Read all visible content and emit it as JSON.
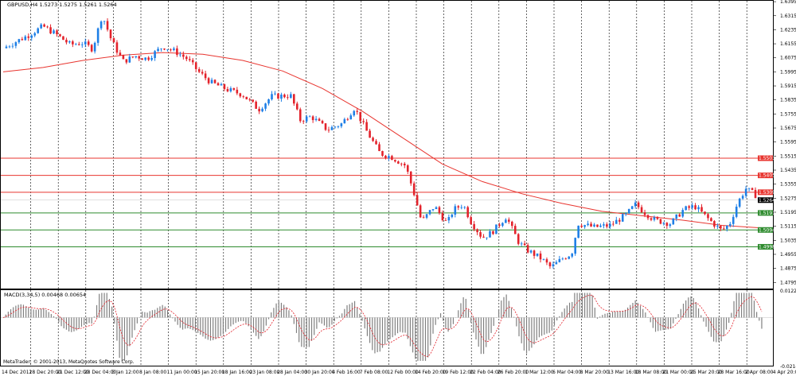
{
  "header": {
    "symbol_line": "GBPUSD,H4  1.5273 1.5275 1.5261 1.5264",
    "macd_title": "MACD(3,34,5) 0.00468 0.00654",
    "copyright": "MetaTrader, © 2001-2013, MetaQuotes Software Corp."
  },
  "chart_data": [
    {
      "type": "candlestick",
      "title": "GBPUSD,H4",
      "ohlc_last": {
        "open": 1.5273,
        "high": 1.5275,
        "low": 1.5261,
        "close": 1.5264
      },
      "ylim": [
        1.476,
        1.64
      ],
      "y_ticks": [
        "1.6395",
        "1.6315",
        "1.6235",
        "1.6155",
        "1.6075",
        "1.5995",
        "1.5915",
        "1.5835",
        "1.5755",
        "1.5675",
        "1.5595",
        "1.5515",
        "1.5435",
        "1.5355",
        "1.5275",
        "1.5195",
        "1.5115",
        "1.5035",
        "1.4955",
        "1.4875",
        "1.4795"
      ],
      "x_labels": [
        "14 Dec 2012",
        "18 Dec 20:00",
        "21 Dec 12:00",
        "28 Dec 04:00",
        "3 Jan 12:00",
        "8 Jan 08:00",
        "11 Jan 00:00",
        "15 Jan 20:00",
        "18 Jan 16:00",
        "23 Jan 08:00",
        "28 Jan 04:00",
        "30 Jan 20:00",
        "4 Feb 16:00",
        "7 Feb 08:00",
        "12 Feb 00:00",
        "14 Feb 20:00",
        "19 Feb 12:00",
        "22 Feb 04:00",
        "26 Feb 20:00",
        "1 Mar 12:00",
        "6 Mar 04:00",
        "8 Mar 20:00",
        "13 Mar 16:00",
        "18 Mar 08:00",
        "21 Mar 00:00",
        "25 Mar 20:00",
        "28 Mar 16:00",
        "2 Apr 08:00",
        "4 Apr 20:00"
      ],
      "close_path": [
        [
          0,
          1.613
        ],
        [
          1.5,
          1.62
        ],
        [
          2.5,
          1.6255
        ],
        [
          3.3,
          1.621
        ],
        [
          4.2,
          1.615
        ],
        [
          5,
          1.616
        ],
        [
          5.6,
          1.6125
        ],
        [
          6.2,
          1.632
        ],
        [
          6.8,
          1.617
        ],
        [
          7.5,
          1.6055
        ],
        [
          8.3,
          1.6085
        ],
        [
          9,
          1.607
        ],
        [
          10,
          1.614
        ],
        [
          10.8,
          1.611
        ],
        [
          11.5,
          1.607
        ],
        [
          12.3,
          1.599
        ],
        [
          13,
          1.5935
        ],
        [
          14,
          1.5895
        ],
        [
          15,
          1.5865
        ],
        [
          16,
          1.578
        ],
        [
          16.8,
          1.5855
        ],
        [
          18,
          1.586
        ],
        [
          18.6,
          1.572
        ],
        [
          19.3,
          1.574
        ],
        [
          20.3,
          1.5665
        ],
        [
          21.2,
          1.57
        ],
        [
          22,
          1.579
        ],
        [
          22.8,
          1.565
        ],
        [
          23.6,
          1.553
        ],
        [
          24.3,
          1.551
        ],
        [
          25.2,
          1.546
        ],
        [
          25.8,
          1.528
        ],
        [
          26.2,
          1.514
        ],
        [
          27,
          1.523
        ],
        [
          27.8,
          1.513
        ],
        [
          28.2,
          1.521
        ],
        [
          28.8,
          1.524
        ],
        [
          29.3,
          1.514
        ],
        [
          30,
          1.505
        ],
        [
          30.6,
          1.508
        ],
        [
          31.5,
          1.517
        ],
        [
          32.3,
          1.502
        ],
        [
          32.8,
          1.498
        ],
        [
          33.7,
          1.493
        ],
        [
          34.3,
          1.488
        ],
        [
          35,
          1.493
        ],
        [
          35.6,
          1.496
        ],
        [
          36,
          1.513
        ],
        [
          37,
          1.511
        ],
        [
          38,
          1.512
        ],
        [
          39,
          1.518
        ],
        [
          39.6,
          1.524
        ],
        [
          40.2,
          1.519
        ],
        [
          40.8,
          1.515
        ],
        [
          41.8,
          1.513
        ],
        [
          42.6,
          1.521
        ],
        [
          43.3,
          1.523
        ],
        [
          44,
          1.517
        ],
        [
          44.6,
          1.512
        ],
        [
          45,
          1.509
        ],
        [
          45.5,
          1.513
        ],
        [
          46,
          1.525
        ],
        [
          46.5,
          1.533
        ],
        [
          47,
          1.53
        ],
        [
          47.5,
          1.5264
        ]
      ],
      "moving_average": [
        [
          0,
          1.5995
        ],
        [
          2.5,
          1.602
        ],
        [
          5,
          1.606
        ],
        [
          7.5,
          1.609
        ],
        [
          10,
          1.6105
        ],
        [
          12.5,
          1.6095
        ],
        [
          15,
          1.606
        ],
        [
          17.5,
          1.6
        ],
        [
          20,
          1.59
        ],
        [
          22.5,
          1.577
        ],
        [
          25,
          1.562
        ],
        [
          27.5,
          1.547
        ],
        [
          30,
          1.537
        ],
        [
          32.5,
          1.53
        ],
        [
          35,
          1.5245
        ],
        [
          37.5,
          1.52
        ],
        [
          40,
          1.5175
        ],
        [
          42.5,
          1.515
        ],
        [
          45,
          1.512
        ],
        [
          47.5,
          1.5105
        ]
      ],
      "horizontal_levels": [
        {
          "value": 1.5503,
          "label": "1.5503",
          "color": "#e8352f"
        },
        {
          "value": 1.5405,
          "label": "1.5405",
          "color": "#e8352f"
        },
        {
          "value": 1.5309,
          "label": "1.5309",
          "color": "#e8352f"
        },
        {
          "value": 1.5191,
          "label": "1.5191",
          "color": "#2e8b2e"
        },
        {
          "value": 1.5094,
          "label": "1.5094",
          "color": "#2e8b2e"
        },
        {
          "value": 1.4998,
          "label": "1.4998",
          "color": "#2e8b2e"
        }
      ],
      "current_price_label": "1.5264",
      "colors": {
        "bull": "#1e7fe6",
        "bear": "#e3222b",
        "ma": "#e8352f",
        "level_red": "#e8352f",
        "level_green": "#2e8b2e",
        "price_tag": "#000000"
      },
      "grid": "vertical dotted"
    },
    {
      "type": "histogram",
      "title": "MACD(3,34,5)",
      "values_shown": {
        "macd": 0.00468,
        "signal": 0.00654
      },
      "ylim": [
        -0.02149,
        0.01223
      ],
      "y_ticks": [
        "0.01223",
        "-0.02149"
      ],
      "colors": {
        "bars": "#808080",
        "signal": "#e3222b"
      }
    }
  ]
}
